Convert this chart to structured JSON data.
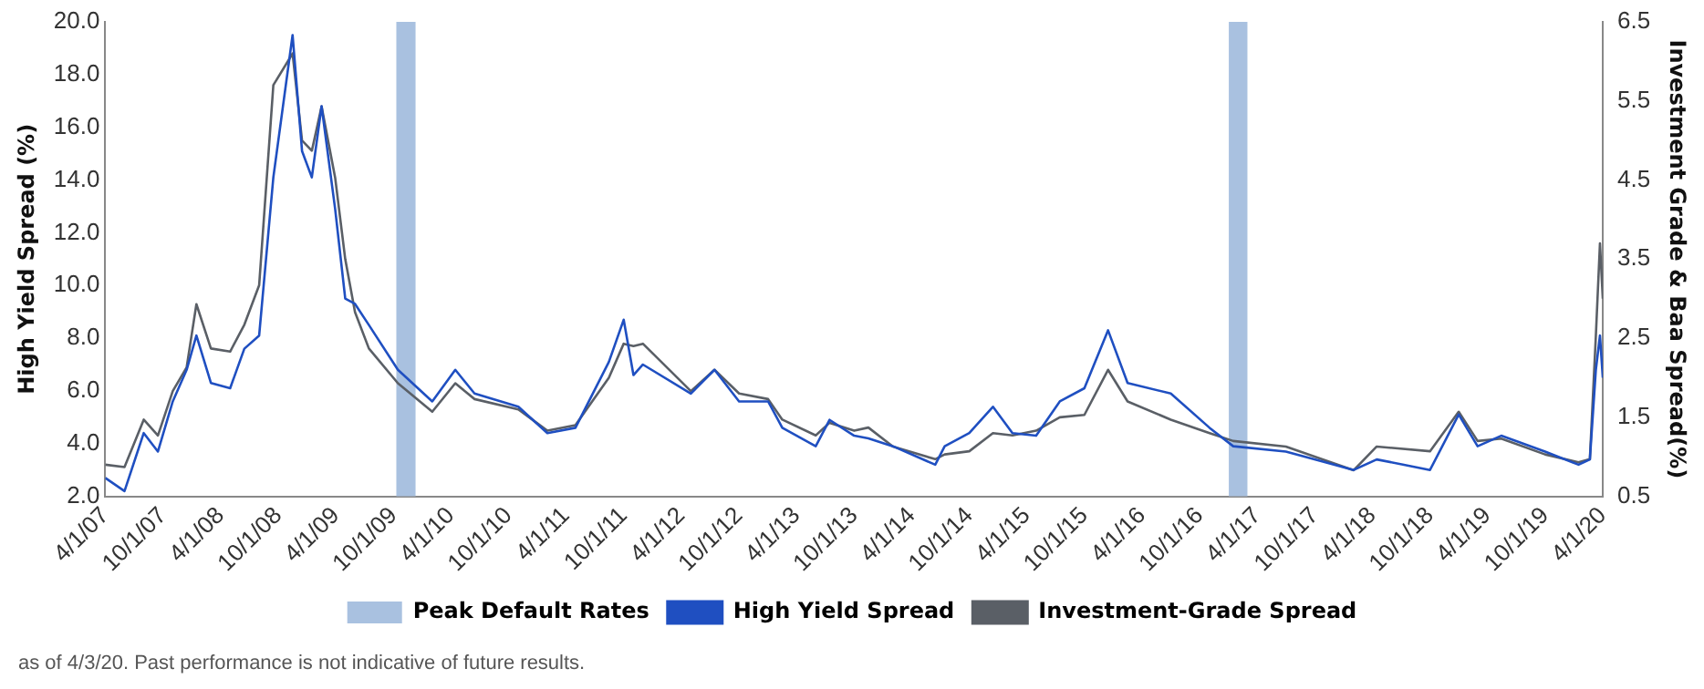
{
  "chart_data": {
    "type": "line",
    "ylabel": "High Yield Spread (%)",
    "y2label": "Investment Grade & Baa Spread(%)",
    "x": [
      "2007-04-01",
      "2007-06-01",
      "2007-08-01",
      "2007-09-15",
      "2007-11-01",
      "2007-12-15",
      "2008-01-15",
      "2008-03-01",
      "2008-05-01",
      "2008-06-15",
      "2008-08-01",
      "2008-09-15",
      "2008-11-15",
      "2008-12-15",
      "2009-01-15",
      "2009-02-15",
      "2009-03-30",
      "2009-05-01",
      "2009-06-01",
      "2009-07-15",
      "2009-10-15",
      "2010-02-01",
      "2010-04-15",
      "2010-06-15",
      "2010-11-01",
      "2011-02-01",
      "2011-05-01",
      "2011-08-15",
      "2011-10-01",
      "2011-11-01",
      "2011-12-01",
      "2012-05-01",
      "2012-07-15",
      "2012-10-01",
      "2013-01-01",
      "2013-02-15",
      "2013-06-01",
      "2013-07-15",
      "2013-10-01",
      "2013-11-15",
      "2014-02-01",
      "2014-06-15",
      "2014-07-15",
      "2014-10-01",
      "2014-12-15",
      "2015-02-15",
      "2015-05-01",
      "2015-07-15",
      "2015-10-01",
      "2015-12-15",
      "2016-02-15",
      "2016-07-01",
      "2016-11-01",
      "2017-01-15",
      "2017-07-01",
      "2018-02-01",
      "2018-04-15",
      "2018-10-01",
      "2018-12-31",
      "2019-03-01",
      "2019-05-15",
      "2019-10-01",
      "2020-01-15",
      "2020-02-20",
      "2020-03-10",
      "2020-03-23",
      "2020-04-01"
    ],
    "series": [
      {
        "name": "High Yield Spread",
        "color": "#1f4fc1",
        "values": [
          2.7,
          2.2,
          4.4,
          3.7,
          5.6,
          6.8,
          8.1,
          6.3,
          6.1,
          7.6,
          8.1,
          14.1,
          19.5,
          15.1,
          14.1,
          16.8,
          12.9,
          9.5,
          9.3,
          8.5,
          6.8,
          5.6,
          6.8,
          5.9,
          5.4,
          4.4,
          4.6,
          7.1,
          8.7,
          6.6,
          7.0,
          5.9,
          6.8,
          5.6,
          5.6,
          4.6,
          3.9,
          4.9,
          4.3,
          4.2,
          3.9,
          3.2,
          3.9,
          4.4,
          5.4,
          4.4,
          4.3,
          5.6,
          6.1,
          8.3,
          6.3,
          5.9,
          4.6,
          3.9,
          3.7,
          3.0,
          3.4,
          3.0,
          5.1,
          3.9,
          4.3,
          3.7,
          3.2,
          3.4,
          6.8,
          8.1,
          6.5
        ]
      },
      {
        "name": "Investment-Grade Spread",
        "color": "#5a5f66",
        "axis": "y2",
        "values": [
          0.9,
          0.87,
          1.47,
          1.27,
          1.83,
          2.13,
          2.93,
          2.37,
          2.33,
          2.67,
          3.17,
          5.7,
          6.1,
          5.0,
          4.87,
          5.43,
          4.53,
          3.5,
          2.83,
          2.37,
          1.93,
          1.57,
          1.93,
          1.73,
          1.6,
          1.33,
          1.4,
          2.0,
          2.43,
          2.4,
          2.43,
          1.83,
          2.1,
          1.8,
          1.73,
          1.47,
          1.27,
          1.43,
          1.33,
          1.37,
          1.13,
          0.97,
          1.03,
          1.07,
          1.3,
          1.27,
          1.33,
          1.5,
          1.53,
          2.1,
          1.7,
          1.47,
          1.3,
          1.2,
          1.13,
          0.83,
          1.13,
          1.07,
          1.57,
          1.2,
          1.23,
          1.03,
          0.93,
          0.97,
          2.53,
          3.7,
          3.0
        ]
      }
    ],
    "bands": [
      {
        "axis": "x",
        "from": "2009-10-10",
        "to": "2009-12-10",
        "label": "Peak Default Rates",
        "color": "#a9c1e0"
      },
      {
        "axis": "x",
        "from": "2017-01-01",
        "to": "2017-03-01",
        "color": "#a9c1e0"
      }
    ],
    "xlim": [
      "2007-04-01",
      "2020-04-01"
    ],
    "xticks": [
      {
        "value": "2007-04-01",
        "label": "4/1/07"
      },
      {
        "value": "2007-10-01",
        "label": "10/1/07"
      },
      {
        "value": "2008-04-01",
        "label": "4/1/08"
      },
      {
        "value": "2008-10-01",
        "label": "10/1/08"
      },
      {
        "value": "2009-04-01",
        "label": "4/1/09"
      },
      {
        "value": "2009-10-01",
        "label": "10/1/09"
      },
      {
        "value": "2010-04-01",
        "label": "4/1/10"
      },
      {
        "value": "2010-10-01",
        "label": "10/1/10"
      },
      {
        "value": "2011-04-01",
        "label": "4/1/11"
      },
      {
        "value": "2011-10-01",
        "label": "10/1/11"
      },
      {
        "value": "2012-04-01",
        "label": "4/1/12"
      },
      {
        "value": "2012-10-01",
        "label": "10/1/12"
      },
      {
        "value": "2013-04-01",
        "label": "4/1/13"
      },
      {
        "value": "2013-10-01",
        "label": "10/1/13"
      },
      {
        "value": "2014-04-01",
        "label": "4/1/14"
      },
      {
        "value": "2014-10-01",
        "label": "10/1/14"
      },
      {
        "value": "2015-04-01",
        "label": "4/1/15"
      },
      {
        "value": "2015-10-01",
        "label": "10/1/15"
      },
      {
        "value": "2016-04-01",
        "label": "4/1/16"
      },
      {
        "value": "2016-10-01",
        "label": "10/1/16"
      },
      {
        "value": "2017-04-01",
        "label": "4/1/17"
      },
      {
        "value": "2017-10-01",
        "label": "10/1/17"
      },
      {
        "value": "2018-04-01",
        "label": "4/1/18"
      },
      {
        "value": "2018-10-01",
        "label": "10/1/18"
      },
      {
        "value": "2019-04-01",
        "label": "4/1/19"
      },
      {
        "value": "2019-10-01",
        "label": "10/1/19"
      },
      {
        "value": "2020-04-01",
        "label": "4/1/20"
      }
    ],
    "ylim": [
      2.0,
      20.0
    ],
    "yticks": [
      {
        "value": 2,
        "label": "2.0"
      },
      {
        "value": 4,
        "label": "4.0"
      },
      {
        "value": 6,
        "label": "6.0"
      },
      {
        "value": 8,
        "label": "8.0"
      },
      {
        "value": 10,
        "label": "10.0"
      },
      {
        "value": 12,
        "label": "12.0"
      },
      {
        "value": 14,
        "label": "14.0"
      },
      {
        "value": 16,
        "label": "16.0"
      },
      {
        "value": 18,
        "label": "18.0"
      },
      {
        "value": 20,
        "label": "20.0"
      }
    ],
    "y2lim": [
      0.5,
      6.5
    ],
    "y2ticks": [
      0.5,
      1.5,
      2.5,
      3.5,
      4.5,
      5.5,
      6.5
    ],
    "grid": false,
    "legend": "bottom",
    "marker": "none",
    "line_style": "solid",
    "annotations": [
      "as of 4/3/20. Past performance is not indicative of future results."
    ]
  }
}
